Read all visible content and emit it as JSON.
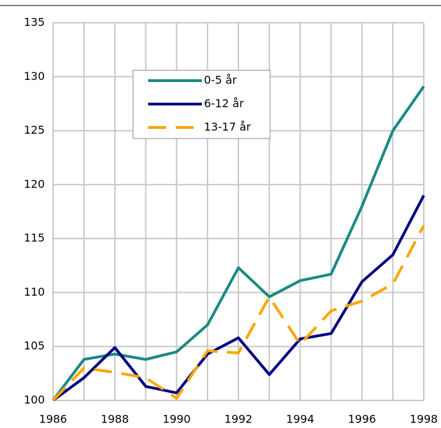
{
  "chart_data": {
    "type": "line",
    "x": [
      1986,
      1987,
      1988,
      1989,
      1990,
      1991,
      1992,
      1993,
      1994,
      1995,
      1996,
      1997,
      1998
    ],
    "series": [
      {
        "name": "0-5 år",
        "color": "#1a8a82",
        "values": [
          100,
          103.8,
          104.3,
          103.8,
          104.5,
          107,
          112.3,
          109.6,
          111.1,
          111.7,
          118,
          125,
          129.1
        ]
      },
      {
        "name": "6-12 år",
        "color": "#000080",
        "values": [
          100,
          102.1,
          104.9,
          101.3,
          100.7,
          104.3,
          105.8,
          102.4,
          105.7,
          106.2,
          111,
          113.5,
          119
        ]
      },
      {
        "name": "13-17 år",
        "color": "#ffa500",
        "dashed": true,
        "values": [
          100,
          103,
          102.6,
          102.1,
          100.2,
          104.6,
          104.4,
          109.6,
          105.2,
          108.3,
          109.2,
          110.8,
          116.2
        ]
      }
    ],
    "xlim": [
      1986,
      1998
    ],
    "xticks": [
      1986,
      1988,
      1990,
      1992,
      1994,
      1996,
      1998
    ],
    "ylim": [
      100,
      135
    ],
    "yticks": [
      100,
      105,
      110,
      115,
      120,
      125,
      130,
      135
    ],
    "grid": true
  }
}
